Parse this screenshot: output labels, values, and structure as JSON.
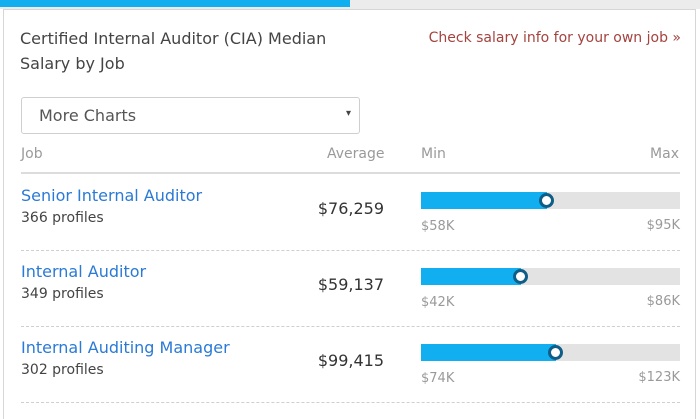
{
  "page": {
    "progress_percent": 50,
    "colors": {
      "accent": "#12aff0",
      "marker": "#0f5e87",
      "link": "#2a7ad6",
      "own_job_link": "#a4433f",
      "track": "#e3e3e3"
    }
  },
  "header": {
    "title": "Certified Internal Auditor (CIA) Median Salary by Job",
    "own_job_link": "Check salary info for your own job »"
  },
  "select": {
    "value": "More Charts",
    "caret_icon": "▾"
  },
  "columns": {
    "job": "Job",
    "average": "Average",
    "min": "Min",
    "max": "Max"
  },
  "rows": [
    {
      "job": "Senior Internal Auditor",
      "profiles": "366 profiles",
      "average": "$76,259",
      "min": "$58K",
      "max": "$95K",
      "marker_percent": 48.5
    },
    {
      "job": "Internal Auditor",
      "profiles": "349 profiles",
      "average": "$59,137",
      "min": "$42K",
      "max": "$86K",
      "marker_percent": 38.8
    },
    {
      "job": "Internal Auditing Manager",
      "profiles": "302 profiles",
      "average": "$99,415",
      "min": "$74K",
      "max": "$123K",
      "marker_percent": 52
    }
  ]
}
